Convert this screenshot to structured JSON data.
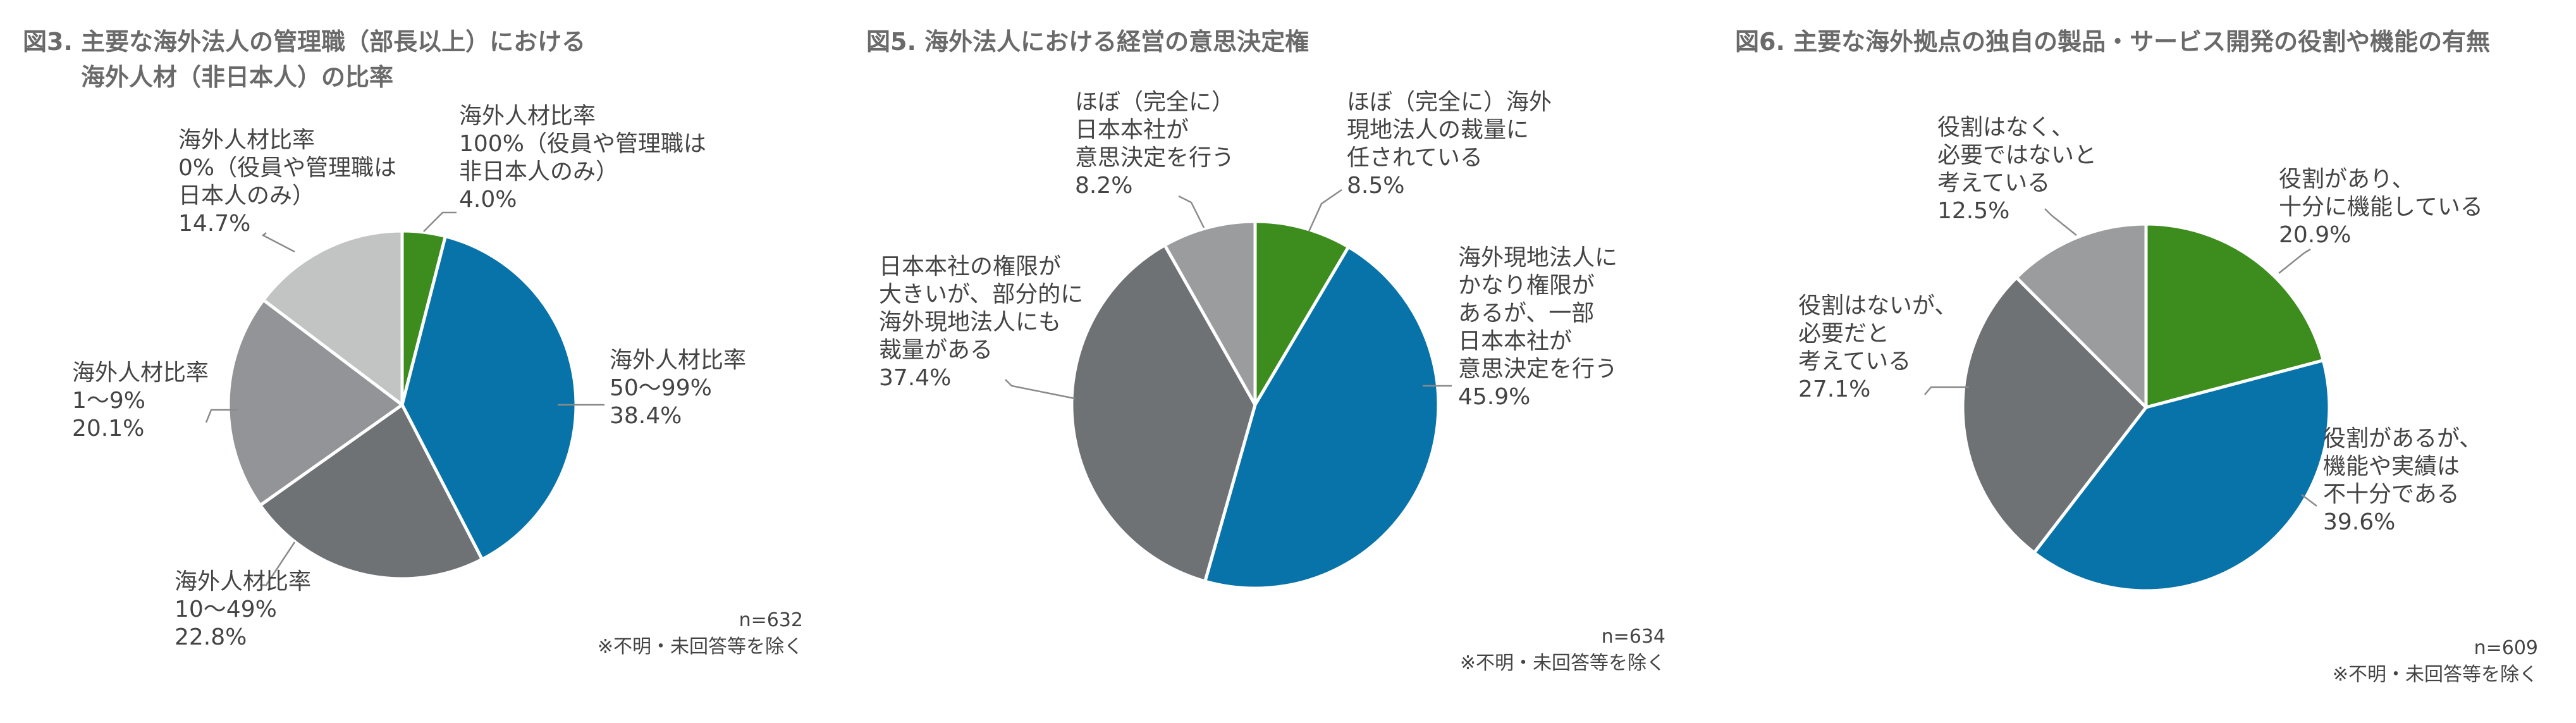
{
  "charts": [
    {
      "title_lines": [
        "図3. 主要な海外法人の管理職（部長以上）における",
        "海外人材（非日本人）の比率"
      ],
      "n": "n=632",
      "footnote": "※不明・未回答等を除く",
      "slices": [
        {
          "label_lines": [
            "海外人材比率",
            "100%（役員や管理職は",
            "非日本人のみ）"
          ],
          "value_text": "4.0%"
        },
        {
          "label_lines": [
            "海外人材比率",
            "50〜99%"
          ],
          "value_text": "38.4%"
        },
        {
          "label_lines": [
            "海外人材比率",
            "10〜49%"
          ],
          "value_text": "22.8%"
        },
        {
          "label_lines": [
            "海外人材比率",
            "1〜9%"
          ],
          "value_text": "20.1%"
        },
        {
          "label_lines": [
            "海外人材比率",
            "0%（役員や管理職は",
            "日本人のみ）"
          ],
          "value_text": "14.7%"
        }
      ]
    },
    {
      "title_lines": [
        "図5. 海外法人における経営の意思決定権"
      ],
      "n": "n=634",
      "footnote": "※不明・未回答等を除く",
      "slices": [
        {
          "label_lines": [
            "ほぼ（完全に）海外",
            "現地法人の裁量に",
            "任されている"
          ],
          "value_text": "8.5%"
        },
        {
          "label_lines": [
            "海外現地法人に",
            "かなり権限が",
            "あるが、一部",
            "日本本社が",
            "意思決定を行う"
          ],
          "value_text": "45.9%"
        },
        {
          "label_lines": [
            "日本本社の権限が",
            "大きいが、部分的に",
            "海外現地法人にも",
            "裁量がある"
          ],
          "value_text": "37.4%"
        },
        {
          "label_lines": [
            "ほぼ（完全に）",
            "日本本社が",
            "意思決定を行う"
          ],
          "value_text": "8.2%"
        }
      ]
    },
    {
      "title_lines": [
        "図6. 主要な海外拠点の独自の製品・サービス開発の役割や機能の有無"
      ],
      "n": "n=609",
      "footnote": "※不明・未回答等を除く",
      "slices": [
        {
          "label_lines": [
            "役割があり、",
            "十分に機能している"
          ],
          "value_text": "20.9%"
        },
        {
          "label_lines": [
            "役割があるが、",
            "機能や実績は",
            "不十分である"
          ],
          "value_text": "39.6%"
        },
        {
          "label_lines": [
            "役割はないが、",
            "必要だと",
            "考えている"
          ],
          "value_text": "27.1%"
        },
        {
          "label_lines": [
            "役割はなく、",
            "必要ではないと",
            "考えている"
          ],
          "value_text": "12.5%"
        }
      ]
    }
  ],
  "chart_data": [
    {
      "type": "pie",
      "title": "図3. 主要な海外法人の管理職（部長以上）における海外人材（非日本人）の比率",
      "categories": [
        "海外人材比率 100%（役員や管理職は非日本人のみ）",
        "海外人材比率 50〜99%",
        "海外人材比率 10〜49%",
        "海外人材比率 1〜9%",
        "海外人材比率 0%（役員や管理職は日本人のみ）"
      ],
      "values": [
        4.0,
        38.4,
        22.8,
        20.1,
        14.7
      ],
      "colors": [
        "#3c8c1e",
        "#0873a9",
        "#6f7275",
        "#929497",
        "#c2c4c3"
      ],
      "n": 632
    },
    {
      "type": "pie",
      "title": "図5. 海外法人における経営の意思決定権",
      "categories": [
        "ほぼ（完全に）海外現地法人の裁量に任されている",
        "海外現地法人にかなり権限があるが、一部日本本社が意思決定を行う",
        "日本本社の権限が大きいが、部分的に海外現地法人にも裁量がある",
        "ほぼ（完全に）日本本社が意思決定を行う"
      ],
      "values": [
        8.5,
        45.9,
        37.4,
        8.2
      ],
      "colors": [
        "#3c8c1e",
        "#0873a9",
        "#6f7275",
        "#9a9c9e"
      ],
      "n": 634
    },
    {
      "type": "pie",
      "title": "図6. 主要な海外拠点の独自の製品・サービス開発の役割や機能の有無",
      "categories": [
        "役割があり、十分に機能している",
        "役割があるが、機能や実績は不十分である",
        "役割はないが、必要だと考えている",
        "役割はなく、必要ではないと考えている"
      ],
      "values": [
        20.9,
        39.6,
        27.1,
        12.5
      ],
      "colors": [
        "#3c8c1e",
        "#0873a9",
        "#6f7275",
        "#9a9c9e"
      ],
      "n": 609
    }
  ]
}
